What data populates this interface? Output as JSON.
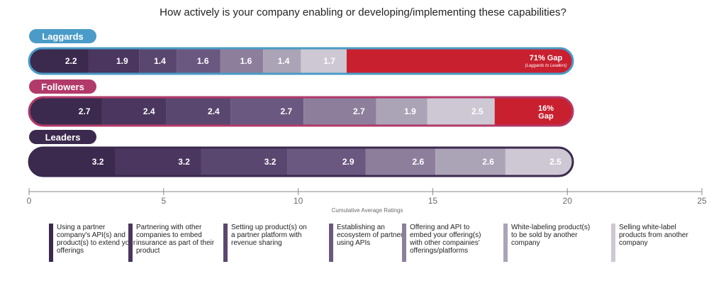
{
  "chart_data": {
    "type": "bar",
    "orientation": "horizontal",
    "stacked": true,
    "title": "How actively is your company enabling or developing/implementing these capabilities?",
    "xlabel": "Cumulative Average Ratings",
    "xlim": [
      0,
      25
    ],
    "xticks": [
      0,
      5,
      10,
      15,
      20,
      25
    ],
    "grid": false,
    "legend_position": "bottom",
    "categories": [
      "Laggards",
      "Followers",
      "Leaders"
    ],
    "series": [
      {
        "name": "Using a partner company's API(s) and product(s) to extend your offerings",
        "color": "#3b2a4d",
        "values": [
          2.2,
          2.7,
          3.2
        ]
      },
      {
        "name": "Partnering with other companies to embed insurance as part of their product",
        "color": "#4a365e",
        "values": [
          1.9,
          2.4,
          3.2
        ]
      },
      {
        "name": "Setting up product(s) on a partner platform with revenue sharing",
        "color": "#5a476f",
        "values": [
          1.4,
          2.4,
          3.2
        ]
      },
      {
        "name": "Establishing an ecosystem of partners using APIs",
        "color": "#6b5880",
        "values": [
          1.6,
          2.7,
          2.9
        ]
      },
      {
        "name": "Offering and API to embed your offering(s) with other compainies' offerings/platforms",
        "color": "#8d7f9c",
        "values": [
          1.6,
          2.7,
          2.6
        ]
      },
      {
        "name": "White-labeling product(s) to be sold by another company",
        "color": "#aba3b6",
        "values": [
          1.4,
          1.9,
          2.6
        ]
      },
      {
        "name": "Selling white-label products from another company",
        "color": "#cdc8d3",
        "values": [
          1.7,
          2.5,
          2.5
        ]
      }
    ],
    "gaps": [
      {
        "line1": "71% Gap",
        "line2": "(Laggards to Leaders)"
      },
      {
        "line1": "16%",
        "line2": "Gap"
      },
      null
    ],
    "gap_color": "#c8202f",
    "group_colors": [
      "#4a9bc7",
      "#b23a6a",
      "#3b2a4d"
    ],
    "tick_labels": [
      "0",
      "5",
      "10",
      "15",
      "20",
      "25"
    ]
  }
}
